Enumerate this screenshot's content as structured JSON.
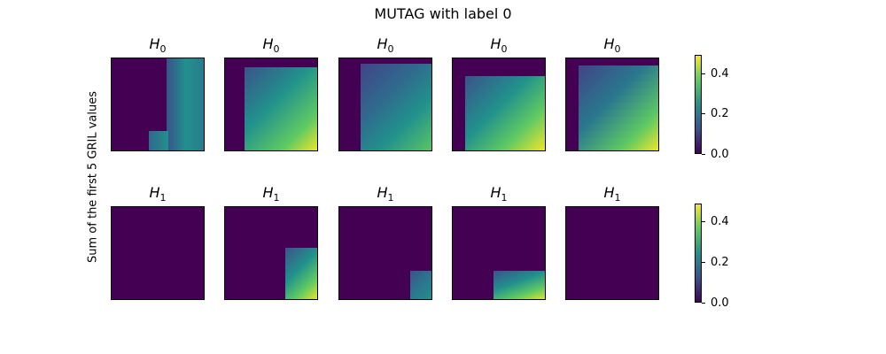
{
  "figure": {
    "title": "MUTAG with label 0",
    "ylabel": "Sum of the first 5 GRIL values"
  },
  "chart_data": {
    "type": "heatmap",
    "title": "MUTAG with label 0",
    "ylabel": "Sum of the first 5 GRIL values",
    "colormap": "viridis",
    "colors": {
      "low": "#440154",
      "mid": "#21918c",
      "high": "#fde725"
    },
    "rows": [
      {
        "label": "H",
        "sub": "0",
        "colorbar": {
          "vmin": 0.0,
          "vmax": 0.49,
          "ticks": [
            "0.0",
            "0.2",
            "0.4"
          ]
        },
        "panels": [
          {
            "title_main": "H",
            "title_sub": "0",
            "peak": 0.28
          },
          {
            "title_main": "H",
            "title_sub": "0",
            "peak": 0.45
          },
          {
            "title_main": "H",
            "title_sub": "0",
            "peak": 0.38
          },
          {
            "title_main": "H",
            "title_sub": "0",
            "peak": 0.49
          },
          {
            "title_main": "H",
            "title_sub": "0",
            "peak": 0.45
          }
        ]
      },
      {
        "label": "H",
        "sub": "1",
        "colorbar": {
          "vmin": 0.0,
          "vmax": 0.49,
          "ticks": [
            "0.0",
            "0.2",
            "0.4"
          ]
        },
        "panels": [
          {
            "title_main": "H",
            "title_sub": "1",
            "peak": 0.0
          },
          {
            "title_main": "H",
            "title_sub": "1",
            "peak": 0.49
          },
          {
            "title_main": "H",
            "title_sub": "1",
            "peak": 0.25
          },
          {
            "title_main": "H",
            "title_sub": "1",
            "peak": 0.45
          },
          {
            "title_main": "H",
            "title_sub": "1",
            "peak": 0.0
          }
        ]
      }
    ]
  }
}
